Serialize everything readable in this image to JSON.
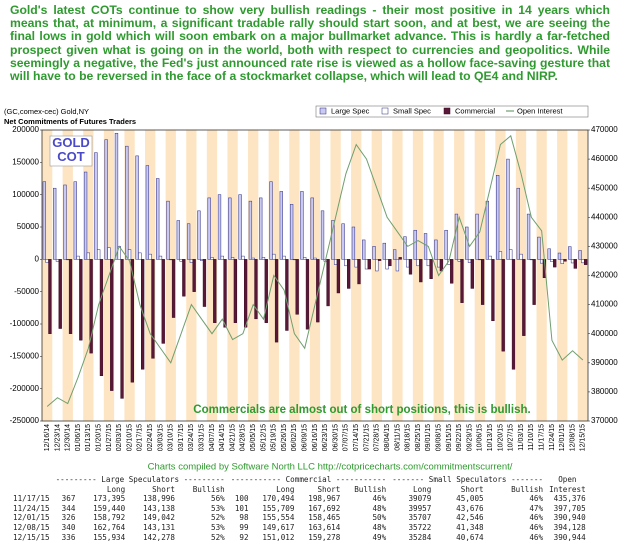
{
  "chart_data": {
    "type": "bar",
    "title": "(GC,comex-cec) Gold,NY",
    "subtitle": "Net Commitments of Futures Traders",
    "annotations": {
      "intro": "Gold's latest COTs continue to show very bullish readings - their most positive in 14 years which means that, at minimum, a significant tradable rally should start soon, and at best, we are seeing the final lows in gold which will soon embark on a major bullmarket advance. This is hardly a far-fetched prospect given what is going on in the world, both with respect to currencies and geopolitics. While seemingly a negative, the Fed's just announced rate rise is viewed as a hollow face-saving gesture that will have to be reversed in the face of a stockmarket collapse, which will lead to QE4 and NIRP.",
      "badge": "GOLD COT",
      "note": "Commercials are almost out of short positions, this is bullish.",
      "credit": "Charts compiled by Software North LLC  http://cotpricecharts.com/commitmentscurrent/"
    },
    "categories": [
      "12/16/14",
      "12/23/14",
      "12/30/14",
      "01/06/15",
      "01/13/15",
      "01/20/15",
      "01/27/15",
      "02/03/15",
      "02/10/15",
      "02/17/15",
      "02/24/15",
      "03/03/15",
      "03/10/15",
      "03/17/15",
      "03/24/15",
      "03/31/15",
      "04/07/15",
      "04/14/15",
      "04/21/15",
      "04/28/15",
      "05/05/15",
      "05/12/15",
      "05/19/15",
      "05/26/15",
      "06/02/15",
      "06/09/15",
      "06/16/15",
      "06/23/15",
      "06/30/15",
      "07/07/15",
      "07/14/15",
      "07/21/15",
      "07/28/15",
      "08/04/15",
      "08/11/15",
      "08/18/15",
      "08/25/15",
      "09/01/15",
      "09/08/15",
      "09/15/15",
      "09/22/15",
      "09/29/15",
      "10/06/15",
      "10/13/15",
      "10/20/15",
      "10/27/15",
      "11/03/15",
      "11/10/15",
      "11/17/15",
      "11/24/15",
      "12/01/15",
      "12/08/15",
      "12/15/15"
    ],
    "series": [
      {
        "name": "Large Spec",
        "color": "#c9c9f2",
        "stroke": "#2a2a80",
        "values": [
          120000,
          110000,
          115000,
          120000,
          135000,
          165000,
          185000,
          195000,
          175000,
          160000,
          145000,
          125000,
          90000,
          60000,
          55000,
          75000,
          95000,
          100000,
          95000,
          100000,
          90000,
          95000,
          120000,
          105000,
          85000,
          105000,
          95000,
          75000,
          60000,
          55000,
          50000,
          30000,
          20000,
          25000,
          15000,
          35000,
          45000,
          40000,
          30000,
          45000,
          70000,
          50000,
          70000,
          90000,
          130000,
          155000,
          110000,
          70000,
          34399,
          16302,
          9750,
          19633,
          13656
        ]
      },
      {
        "name": "Small Spec",
        "color": "#ffffff",
        "stroke": "#2a2a80",
        "values": [
          -5000,
          -3000,
          0,
          5000,
          10000,
          15000,
          18000,
          20000,
          15000,
          10000,
          8000,
          5000,
          0,
          -3000,
          -5000,
          -2000,
          3000,
          5000,
          3000,
          5000,
          2000,
          3000,
          8000,
          5000,
          0,
          3000,
          2000,
          -3000,
          -8000,
          -10000,
          -12000,
          -15000,
          -18000,
          -15000,
          -18000,
          -12000,
          -10000,
          -10000,
          -12000,
          -8000,
          -3000,
          -5000,
          0,
          5000,
          12000,
          15000,
          8000,
          0,
          -5926,
          -3719,
          -6839,
          -5626,
          -5390
        ]
      },
      {
        "name": "Commercial",
        "color": "#5a1838",
        "stroke": "#3a0a22",
        "values": [
          -115000,
          -107000,
          -115000,
          -125000,
          -145000,
          -180000,
          -203000,
          -215000,
          -190000,
          -170000,
          -153000,
          -130000,
          -90000,
          -57000,
          -50000,
          -73000,
          -98000,
          -105000,
          -98000,
          -105000,
          -92000,
          -98000,
          -128000,
          -110000,
          -85000,
          -108000,
          -97000,
          -72000,
          -52000,
          -45000,
          -38000,
          -15000,
          -2000,
          -10000,
          3000,
          -23000,
          -35000,
          -30000,
          -18000,
          -37000,
          -67000,
          -45000,
          -70000,
          -95000,
          -142000,
          -170000,
          -118000,
          -70000,
          -28473,
          -11983,
          -2911,
          -13997,
          -8266
        ]
      },
      {
        "name": "Open Interest",
        "color": "#6f9f6f",
        "axis": "y2",
        "type": "line",
        "values": [
          375000,
          378000,
          376000,
          385000,
          395000,
          410000,
          420000,
          430000,
          425000,
          410000,
          400000,
          395000,
          390000,
          400000,
          410000,
          405000,
          400000,
          405000,
          398000,
          400000,
          410000,
          405000,
          420000,
          415000,
          400000,
          395000,
          410000,
          425000,
          440000,
          455000,
          465000,
          460000,
          450000,
          440000,
          435000,
          430000,
          432000,
          430000,
          420000,
          425000,
          440000,
          430000,
          435000,
          450000,
          465000,
          468000,
          455000,
          440000,
          435376,
          397705,
          390940,
          394128,
          390944
        ]
      }
    ],
    "ylim": [
      -250000,
      200000
    ],
    "yticks": [
      -250000,
      -200000,
      -150000,
      -100000,
      -50000,
      0,
      50000,
      100000,
      150000,
      200000
    ],
    "y2lim": [
      370000,
      470000
    ],
    "y2ticks": [
      370000,
      380000,
      390000,
      400000,
      410000,
      420000,
      430000,
      440000,
      450000,
      460000,
      470000
    ],
    "grid": false,
    "legend": "top-right"
  },
  "table": {
    "groups": [
      "--------- Large Speculators ---------",
      "----------- Commercial -----------",
      "------- Small Speculators -------",
      "Open"
    ],
    "subheads": [
      "Long",
      "Short",
      "Bullish",
      "Long",
      "Short",
      "Bullish",
      "Long",
      "Short",
      "Bullish",
      "Interest"
    ],
    "rows": [
      [
        "11/17/15",
        "367",
        "173,395",
        "138,996",
        "56%",
        "100",
        "170,494",
        "198,967",
        "46%",
        "39079",
        "45,005",
        "46%",
        "435,376"
      ],
      [
        "11/24/15",
        "344",
        "159,440",
        "143,138",
        "53%",
        "101",
        "155,709",
        "167,692",
        "48%",
        "39957",
        "43,676",
        "47%",
        "397,705"
      ],
      [
        "12/01/15",
        "326",
        "158,792",
        "149,042",
        "52%",
        "98",
        "155,554",
        "158,465",
        "50%",
        "35707",
        "42,546",
        "46%",
        "390,940"
      ],
      [
        "12/08/15",
        "340",
        "162,764",
        "143,131",
        "53%",
        "99",
        "149,617",
        "163,614",
        "48%",
        "35722",
        "41,348",
        "46%",
        "394,128"
      ],
      [
        "12/15/15",
        "336",
        "155,934",
        "142,278",
        "52%",
        "92",
        "151,012",
        "159,278",
        "49%",
        "35284",
        "40,674",
        "46%",
        "390,944"
      ]
    ]
  }
}
